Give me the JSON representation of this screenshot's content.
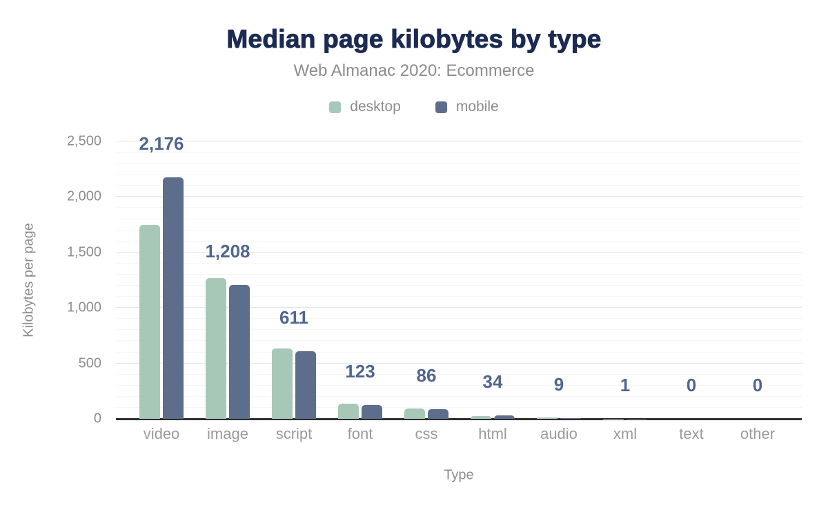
{
  "chart": {
    "title": "Median page kilobytes by type",
    "subtitle": "Web Almanac 2020: Ecommerce",
    "x_axis_title": "Type",
    "y_axis_title": "Kilobytes per page"
  },
  "legend": {
    "items": [
      {
        "label": "desktop",
        "color": "#a8c8b7"
      },
      {
        "label": "mobile",
        "color": "#5d6e8c"
      }
    ]
  },
  "chart_data": {
    "type": "bar",
    "title": "Median page kilobytes by type",
    "subtitle": "Web Almanac 2020: Ecommerce",
    "xlabel": "Type",
    "ylabel": "Kilobytes per page",
    "categories": [
      "video",
      "image",
      "script",
      "font",
      "css",
      "html",
      "audio",
      "xml",
      "text",
      "other"
    ],
    "series": [
      {
        "name": "desktop",
        "color": "#a8c8b7",
        "values": [
          1750,
          1266,
          635,
          137,
          91,
          28,
          14,
          2,
          0,
          0
        ]
      },
      {
        "name": "mobile",
        "color": "#5d6e8c",
        "values": [
          2176,
          1208,
          611,
          123,
          86,
          34,
          9,
          1,
          0,
          0
        ]
      }
    ],
    "bar_labels": [
      "2,176",
      "1,208",
      "611",
      "123",
      "86",
      "34",
      "9",
      "1",
      "0",
      "0"
    ],
    "bar_labels_series": "mobile",
    "ylim": [
      0,
      2500
    ],
    "yticks": [
      "0",
      "500",
      "1,000",
      "1,500",
      "2,000",
      "2,500"
    ],
    "ytick_values": [
      0,
      500,
      1000,
      1500,
      2000,
      2500
    ],
    "grid": {
      "minor_step": 100,
      "major_step": 500
    },
    "legend_position": "top"
  },
  "colors": {
    "background": "#ffffff",
    "title": "#1c2b52",
    "subtitle": "#8c8c8c",
    "axis_title": "#8c8c8c",
    "tick_text": "#8e8e8e",
    "category_text": "#9a9a9a",
    "bar_label": "#50668f",
    "axis_line": "#2d2d2d",
    "grid_major": "#e3e3e3",
    "grid_minor": "#f5f5f5",
    "desktop_bar": "#a8c8b7",
    "mobile_bar": "#5d6e8c"
  }
}
